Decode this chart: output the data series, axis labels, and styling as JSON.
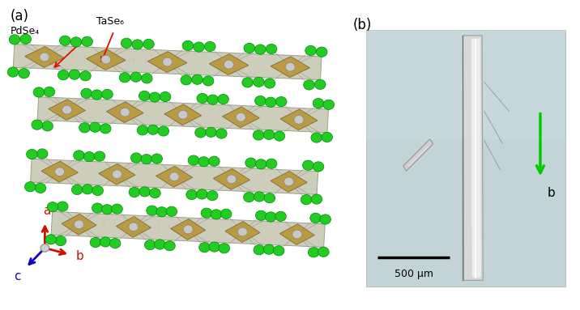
{
  "fig_width": 7.16,
  "fig_height": 3.83,
  "dpi": 100,
  "bg_color": "#ffffff",
  "panel_a_label": "(a)",
  "panel_b_label": "(b)",
  "label_fontsize": 12,
  "label_color": "#000000",
  "micro_bg": "#c2d4d8",
  "annotation_PdSe4": "PdSe₄",
  "annotation_TaSe6": "TaSe₆",
  "axis_a_color": "#cc1100",
  "axis_b_color": "#cc1100",
  "axis_c_color": "#1100cc",
  "axis_label_a": "a",
  "axis_label_b": "b",
  "axis_label_c": "c",
  "scale_bar_label": "500 μm",
  "crystal_layer_color": "#b8973a",
  "crystal_envelope_color": "#c8c8b4",
  "se_atom_color": "#22cc22",
  "se_atom_dark": "#008800",
  "pd_atom_color": "#c8c8c8",
  "red_arrow_color": "#dd1100",
  "green_arrow_color": "#00cc00",
  "b_label": "b",
  "bond_color": "#888888"
}
